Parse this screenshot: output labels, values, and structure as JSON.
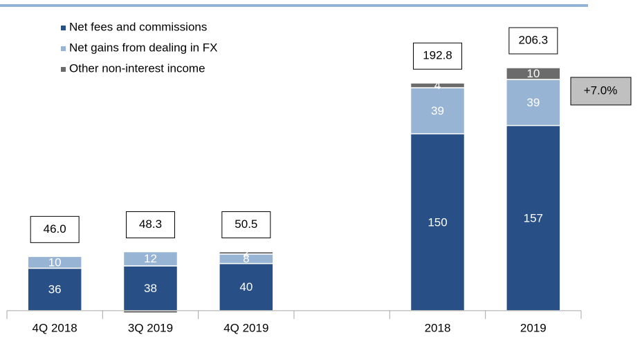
{
  "chart_data": {
    "type": "stacked-bar",
    "categories": [
      "4Q 2018",
      "3Q 2019",
      "4Q 2019",
      null,
      "2018",
      "2019"
    ],
    "series": [
      {
        "name": "Net fees and commissions",
        "color": "#284f86",
        "values": [
          36,
          38,
          40,
          null,
          150,
          157
        ]
      },
      {
        "name": "Net gains from dealing in FX",
        "color": "#98b4d4",
        "values": [
          10,
          12,
          8,
          null,
          39,
          39
        ]
      },
      {
        "name": "Other non-interest income",
        "color": "#6b6b6b",
        "values": [
          0,
          -2,
          2,
          null,
          4,
          10
        ]
      }
    ],
    "totals": {
      "values": [
        46,
        48.3,
        50.5,
        null,
        192.8,
        206.3
      ],
      "value_labels": [
        "46.0",
        "48.3",
        "50.5",
        null,
        "192.8",
        "206.3"
      ]
    },
    "annotation": "+7.0%",
    "ylim": [
      -10,
      230
    ],
    "legend": "top-left"
  }
}
